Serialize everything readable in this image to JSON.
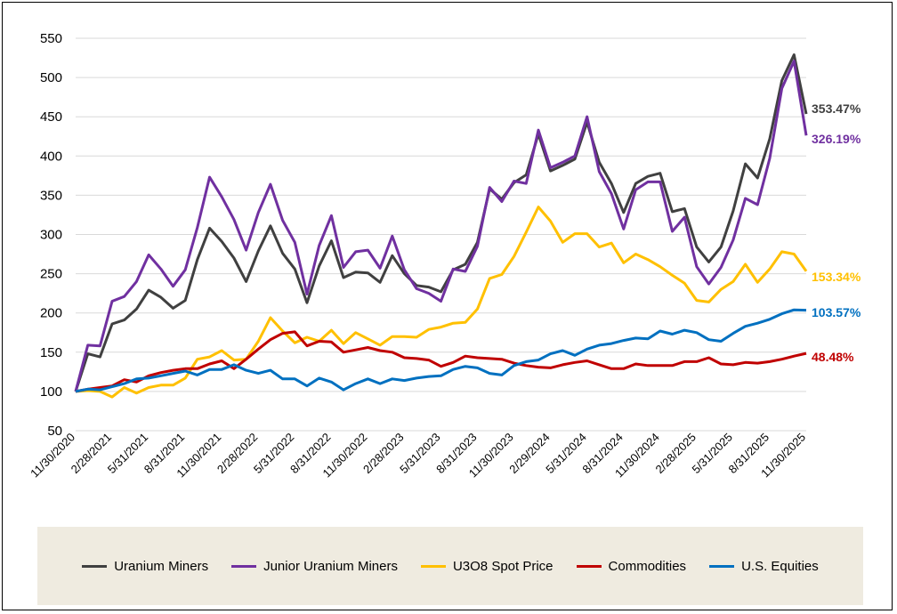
{
  "chart_data": {
    "type": "line",
    "ylim": [
      50,
      550
    ],
    "yticks": [
      50,
      100,
      150,
      200,
      250,
      300,
      350,
      400,
      450,
      500,
      550
    ],
    "grid": true,
    "legend_position": "bottom",
    "x_start": "11/30/2020",
    "x_frequency": "monthly",
    "xtick_labels": [
      "11/30/2020",
      "2/28/2021",
      "5/31/2021",
      "8/31/2021",
      "11/30/2021",
      "2/28/2022",
      "5/31/2022",
      "8/31/2022",
      "11/30/2022",
      "2/28/2023",
      "5/31/2023",
      "8/31/2023",
      "11/30/2023",
      "2/29/2024",
      "5/31/2024",
      "8/31/2024",
      "11/30/2024",
      "2/28/2025",
      "5/31/2025",
      "8/31/2025",
      "11/30/2025"
    ],
    "series": [
      {
        "name": "Uranium Miners",
        "color": "#404040",
        "end_label": "353.47%",
        "values": [
          100,
          148,
          144,
          186,
          191,
          205,
          229,
          220,
          206,
          216,
          268,
          308,
          291,
          270,
          240,
          279,
          311,
          276,
          256,
          213,
          260,
          292,
          245,
          252,
          251,
          239,
          273,
          250,
          235,
          233,
          227,
          255,
          262,
          290,
          358,
          345,
          366,
          376,
          428,
          381,
          388,
          396,
          443,
          392,
          365,
          328,
          365,
          374,
          378,
          329,
          333,
          284,
          265,
          284,
          330,
          390,
          372,
          422,
          496,
          529,
          453.47
        ]
      },
      {
        "name": "Junior Uranium Miners",
        "color": "#7030A0",
        "end_label": "326.19%",
        "values": [
          100,
          159,
          158,
          215,
          221,
          240,
          274,
          256,
          234,
          255,
          309,
          373,
          348,
          319,
          280,
          328,
          364,
          318,
          290,
          224,
          286,
          324,
          258,
          278,
          280,
          257,
          298,
          255,
          231,
          225,
          215,
          256,
          253,
          285,
          360,
          342,
          368,
          365,
          433,
          385,
          392,
          400,
          450,
          380,
          352,
          307,
          357,
          367,
          367,
          304,
          322,
          259,
          237,
          258,
          293,
          346,
          338,
          397,
          486,
          521,
          426.19
        ]
      },
      {
        "name": "U3O8 Spot Price",
        "color": "#FFC000",
        "end_label": "153.34%",
        "values": [
          100,
          101,
          100,
          93,
          105,
          98,
          105,
          108,
          108,
          117,
          141,
          144,
          152,
          140,
          141,
          164,
          194,
          177,
          162,
          169,
          164,
          178,
          161,
          175,
          167,
          159,
          170,
          170,
          169,
          179,
          182,
          187,
          188,
          205,
          244,
          249,
          272,
          303,
          335,
          317,
          290,
          301,
          301,
          284,
          289,
          264,
          275,
          268,
          259,
          248,
          238,
          216,
          214,
          230,
          240,
          262,
          239,
          256,
          278,
          275,
          253.34
        ]
      },
      {
        "name": "Commodities",
        "color": "#C00000",
        "end_label": "48.48%",
        "values": [
          100,
          103,
          105,
          107,
          115,
          112,
          120,
          124,
          127,
          129,
          129,
          135,
          139,
          129,
          141,
          154,
          166,
          174,
          176,
          158,
          164,
          163,
          150,
          153,
          156,
          152,
          150,
          143,
          142,
          140,
          132,
          137,
          145,
          143,
          142,
          141,
          136,
          133,
          131,
          130,
          134,
          137,
          139,
          134,
          129,
          129,
          135,
          133,
          133,
          133,
          138,
          138,
          143,
          135,
          134,
          137,
          136,
          138,
          141,
          145,
          148.48
        ]
      },
      {
        "name": "U.S. Equities",
        "color": "#0070C0",
        "end_label": "103.57%",
        "values": [
          100,
          103,
          102,
          106,
          110,
          116,
          117,
          120,
          123,
          126,
          121,
          128,
          128,
          134,
          127,
          123,
          127,
          116,
          116,
          107,
          117,
          112,
          102,
          110,
          116,
          110,
          116,
          114,
          117,
          119,
          120,
          128,
          132,
          130,
          123,
          121,
          133,
          138,
          140,
          148,
          152,
          146,
          154,
          159,
          161,
          165,
          168,
          167,
          177,
          173,
          178,
          175,
          166,
          164,
          174,
          183,
          187,
          192,
          199,
          204,
          203.57
        ]
      }
    ]
  }
}
